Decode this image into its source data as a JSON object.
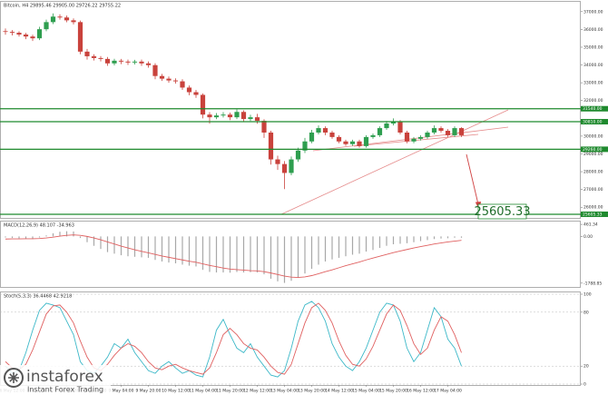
{
  "chart_data": [
    {
      "type": "candlestick",
      "title": "Bitcoin, H4  29895.46 29905.00 29726.22 29755.22",
      "categories": [
        null,
        "6 May 12:00",
        null,
        null,
        null,
        "7 May 04:00",
        null,
        null,
        null,
        "7 May 20:00",
        null,
        null,
        null,
        "8 May 12:00",
        null,
        null,
        null,
        "9 May 04:00",
        null,
        null,
        null,
        "9 May 20:00",
        null,
        null,
        null,
        "10 May 12:00",
        null,
        null,
        null,
        "11 May 04:00",
        null,
        null,
        null,
        "11 May 20:00",
        null,
        null,
        null,
        "12 May 12:00",
        null,
        null,
        null,
        "13 May 04:00",
        null,
        null,
        null,
        "13 May 20:00",
        null,
        null,
        null,
        "14 May 12:00",
        null,
        null,
        null,
        "15 May 04:00",
        null,
        null,
        null,
        "15 May 20:00",
        null,
        null,
        null,
        "16 May 12:00",
        null,
        null,
        null,
        "17 May 04:00",
        null,
        null
      ],
      "open": [
        35900,
        35860,
        35810,
        35710,
        35600,
        35500,
        36010,
        36410,
        36720,
        36670,
        36510,
        36410,
        34750,
        34490,
        34390,
        34340,
        34090,
        34240,
        34190,
        34140,
        34190,
        34090,
        33990,
        33380,
        33230,
        33130,
        33080,
        32730,
        32470,
        32320,
        31210,
        31060,
        31160,
        31210,
        31060,
        31360,
        30960,
        31060,
        30860,
        30200,
        28690,
        28430,
        27930,
        28690,
        29190,
        29700,
        30200,
        30450,
        30200,
        29950,
        29700,
        29550,
        29700,
        29440,
        29950,
        30050,
        30450,
        30710,
        30810,
        30200,
        29700,
        29850,
        29950,
        30200,
        30450,
        30300,
        30050,
        30450
      ],
      "high": [
        36050,
        35960,
        35900,
        35800,
        35700,
        36150,
        36550,
        36900,
        36850,
        36780,
        36620,
        36500,
        34900,
        34600,
        34500,
        34450,
        34350,
        34340,
        34300,
        34290,
        34300,
        34200,
        34100,
        33500,
        33350,
        33250,
        33200,
        32850,
        32600,
        32400,
        31350,
        31300,
        31350,
        31320,
        31500,
        31450,
        31200,
        31250,
        30950,
        30300,
        28900,
        28600,
        28850,
        29350,
        29900,
        30350,
        30600,
        30550,
        30300,
        30050,
        29800,
        29800,
        29800,
        30050,
        30150,
        30550,
        30850,
        31000,
        30900,
        30300,
        29950,
        30050,
        30300,
        30600,
        30550,
        30400,
        30550,
        30500
      ],
      "low": [
        35700,
        35660,
        35600,
        35450,
        35350,
        35400,
        35900,
        36300,
        36550,
        36400,
        36280,
        34600,
        34300,
        34250,
        34200,
        33950,
        33980,
        34050,
        34000,
        34030,
        33950,
        33850,
        33200,
        33100,
        33000,
        32950,
        32600,
        32300,
        32150,
        31000,
        30700,
        30950,
        31050,
        30900,
        30950,
        30800,
        30850,
        30700,
        29900,
        28400,
        28100,
        27020,
        27800,
        28550,
        29050,
        29600,
        30100,
        30050,
        29850,
        29600,
        29450,
        29450,
        29350,
        29350,
        29850,
        29950,
        30350,
        30600,
        30100,
        29600,
        29600,
        29750,
        29850,
        30100,
        30200,
        29950,
        29950,
        29950
      ],
      "close": [
        35860,
        35810,
        35710,
        35600,
        35500,
        36010,
        36410,
        36720,
        36670,
        36510,
        36410,
        34750,
        34490,
        34390,
        34340,
        34090,
        34240,
        34190,
        34140,
        34190,
        34090,
        33990,
        33380,
        33230,
        33130,
        33080,
        32730,
        32470,
        32320,
        31210,
        31060,
        31160,
        31210,
        31060,
        31360,
        30960,
        31060,
        30860,
        30200,
        28690,
        28430,
        27930,
        28690,
        29190,
        29700,
        30200,
        30450,
        30200,
        29950,
        29700,
        29550,
        29700,
        29440,
        29950,
        30050,
        30450,
        30710,
        30810,
        30200,
        29700,
        29850,
        29950,
        30200,
        30450,
        30300,
        30050,
        30450,
        30050
      ],
      "up_color": "#2e9e4f",
      "down_color": "#c9423c",
      "ylim": [
        25400,
        37500
      ],
      "yticks": [
        {
          "value": 26000,
          "label": "26000.00"
        },
        {
          "value": 27000,
          "label": "27000.00"
        },
        {
          "value": 28000,
          "label": "28000.00"
        },
        {
          "value": 29000,
          "label": "29000.00"
        },
        {
          "value": 30000,
          "label": "30000.00"
        },
        {
          "value": 32000,
          "label": "32000.00"
        },
        {
          "value": 33000,
          "label": "33000.00"
        },
        {
          "value": 34000,
          "label": "34000.00"
        },
        {
          "value": 35000,
          "label": "35000.00"
        },
        {
          "value": 36000,
          "label": "36000.00"
        },
        {
          "value": 37000,
          "label": "37000.00"
        }
      ],
      "levels": [
        {
          "value": 31540,
          "label": "31540.00"
        },
        {
          "value": 30810,
          "label": "30810.00"
        },
        {
          "value": 29260,
          "label": "29260.00"
        },
        {
          "value": 25605.33,
          "label": "25605.33"
        }
      ],
      "level_color": "#1f8a2e"
    },
    {
      "type": "macd",
      "title": "MACD(12,26,9) 48.107 -34.963",
      "series": [
        {
          "style": "bar",
          "color": "#a8a8a8",
          "values": [
            -40,
            -60,
            -80,
            -90,
            -100,
            -40,
            40,
            120,
            180,
            200,
            190,
            -60,
            -220,
            -360,
            -480,
            -600,
            -660,
            -720,
            -760,
            -780,
            -800,
            -820,
            -900,
            -960,
            -1000,
            -1030,
            -1080,
            -1120,
            -1150,
            -1280,
            -1360,
            -1380,
            -1380,
            -1390,
            -1360,
            -1380,
            -1370,
            -1380,
            -1450,
            -1620,
            -1720,
            -1780,
            -1700,
            -1580,
            -1420,
            -1240,
            -1080,
            -960,
            -880,
            -820,
            -760,
            -700,
            -660,
            -580,
            -520,
            -440,
            -360,
            -300,
            -280,
            -260,
            -220,
            -180,
            -140,
            -100,
            -80,
            -70,
            -50,
            -50
          ]
        },
        {
          "style": "line",
          "color": "#e06060",
          "values": [
            -100,
            -95,
            -92,
            -90,
            -90,
            -80,
            -60,
            -30,
            10,
            40,
            60,
            40,
            0,
            -60,
            -130,
            -210,
            -290,
            -370,
            -440,
            -510,
            -570,
            -630,
            -690,
            -750,
            -800,
            -850,
            -900,
            -950,
            -990,
            -1050,
            -1110,
            -1160,
            -1210,
            -1250,
            -1270,
            -1290,
            -1310,
            -1320,
            -1350,
            -1400,
            -1460,
            -1520,
            -1560,
            -1570,
            -1550,
            -1500,
            -1430,
            -1350,
            -1280,
            -1200,
            -1120,
            -1050,
            -980,
            -900,
            -830,
            -760,
            -690,
            -620,
            -560,
            -500,
            -440,
            -390,
            -340,
            -290,
            -250,
            -210,
            -180,
            -150
          ]
        }
      ],
      "ylim": [
        -1900,
        500
      ],
      "yticks": [
        -1788.85,
        {
          "value": 0,
          "label": "0.00"
        },
        461.34
      ]
    },
    {
      "type": "line",
      "title": "Stoch(5,3,3) 36.4468 42.9218",
      "series": [
        {
          "color": "#3cb8c8",
          "values": [
            20,
            12,
            15,
            35,
            60,
            82,
            90,
            88,
            85,
            70,
            55,
            25,
            15,
            12,
            20,
            30,
            45,
            40,
            50,
            35,
            25,
            15,
            12,
            20,
            25,
            18,
            12,
            15,
            10,
            8,
            30,
            60,
            72,
            55,
            40,
            35,
            45,
            30,
            20,
            10,
            8,
            15,
            40,
            70,
            88,
            92,
            85,
            70,
            45,
            30,
            20,
            15,
            25,
            40,
            60,
            80,
            90,
            88,
            70,
            40,
            25,
            35,
            60,
            85,
            75,
            50,
            40,
            20
          ]
        },
        {
          "color": "#e06060",
          "values": [
            25,
            18,
            16,
            22,
            38,
            58,
            78,
            87,
            88,
            80,
            68,
            48,
            30,
            18,
            15,
            22,
            32,
            40,
            45,
            42,
            35,
            25,
            18,
            16,
            20,
            22,
            18,
            15,
            13,
            11,
            18,
            35,
            55,
            62,
            55,
            45,
            40,
            38,
            30,
            20,
            13,
            11,
            22,
            45,
            68,
            85,
            90,
            82,
            68,
            48,
            32,
            22,
            20,
            28,
            42,
            60,
            78,
            88,
            82,
            65,
            45,
            33,
            40,
            60,
            75,
            70,
            55,
            35
          ]
        }
      ],
      "ylim": [
        0,
        100
      ],
      "yticks": [
        0,
        20,
        80,
        100
      ],
      "grid": true
    }
  ],
  "watermark": {
    "brand": "instaforex",
    "tagline": "Instant Forex Trading"
  }
}
